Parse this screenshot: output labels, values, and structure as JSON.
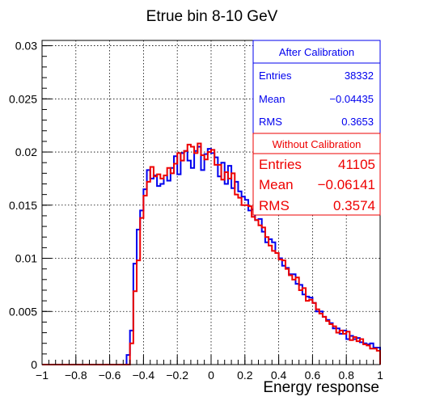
{
  "chart_data": {
    "type": "line",
    "title": "Etrue bin 8-10 GeV",
    "xlabel": "Energy response",
    "ylabel": "",
    "xlim": [
      -1,
      1
    ],
    "ylim": [
      0,
      0.0305
    ],
    "grid": true,
    "x_ticks": [
      -1,
      -0.8,
      -0.6,
      -0.4,
      -0.2,
      0,
      0.2,
      0.4,
      0.6,
      0.8,
      1
    ],
    "x_tick_labels": [
      "−1",
      "−0.8",
      "−0.6",
      "−0.4",
      "−0.2",
      "0",
      "0.2",
      "0.4",
      "0.6",
      "0.8",
      "1"
    ],
    "y_ticks": [
      0,
      0.005,
      0.01,
      0.015,
      0.02,
      0.025,
      0.03
    ],
    "y_tick_labels": [
      "0",
      "0.005",
      "0.01",
      "0.015",
      "0.02",
      "0.025",
      "0.03"
    ],
    "bin_edges_range": [
      -1,
      1
    ],
    "n_bins": 100,
    "series": [
      {
        "name": "After Calibration",
        "color": "#0000ee",
        "start_bin": 25,
        "values": [
          0.0009,
          0.0032,
          0.0095,
          0.0127,
          0.0145,
          0.0165,
          0.0183,
          0.0175,
          0.0178,
          0.0168,
          0.017,
          0.0178,
          0.0173,
          0.0185,
          0.0196,
          0.0179,
          0.0199,
          0.0201,
          0.0192,
          0.0185,
          0.0201,
          0.0205,
          0.0183,
          0.0198,
          0.0203,
          0.0199,
          0.0195,
          0.0177,
          0.019,
          0.017,
          0.0187,
          0.0166,
          0.0172,
          0.0163,
          0.0158,
          0.0155,
          0.0145,
          0.0146,
          0.0136,
          0.0137,
          0.0125,
          0.0115,
          0.0118,
          0.0115,
          0.0105,
          0.01,
          0.0093,
          0.0091,
          0.0085,
          0.0085,
          0.0076,
          0.0075,
          0.0066,
          0.0064,
          0.0063,
          0.0058,
          0.005,
          0.005,
          0.0045,
          0.0042,
          0.0039,
          0.0034,
          0.0034,
          0.0029,
          0.0032,
          0.0024,
          0.0027,
          0.0024,
          0.0025,
          0.0021,
          0.002,
          0.0019,
          0.002,
          0.0016,
          0.0016
        ]
      },
      {
        "name": "Without Calibration",
        "color": "#ee0000",
        "start_bin": 26,
        "values": [
          0.002,
          0.0069,
          0.0098,
          0.0138,
          0.0159,
          0.0172,
          0.0186,
          0.0177,
          0.0179,
          0.0175,
          0.0178,
          0.0185,
          0.018,
          0.0189,
          0.0199,
          0.0192,
          0.0201,
          0.0207,
          0.0205,
          0.0199,
          0.0208,
          0.0197,
          0.0193,
          0.02,
          0.0202,
          0.0188,
          0.0188,
          0.0174,
          0.0181,
          0.0175,
          0.018,
          0.016,
          0.0157,
          0.015,
          0.015,
          0.0149,
          0.0139,
          0.0136,
          0.0131,
          0.0129,
          0.012,
          0.0112,
          0.0107,
          0.0105,
          0.0099,
          0.0098,
          0.009,
          0.0084,
          0.008,
          0.0082,
          0.007,
          0.0072,
          0.006,
          0.0061,
          0.0058,
          0.0052,
          0.0048,
          0.0045,
          0.0041,
          0.0038,
          0.0036,
          0.003,
          0.0032,
          0.0029,
          0.0031,
          0.0023,
          0.0026,
          0.0022,
          0.0024,
          0.0019,
          0.0018,
          0.0015,
          0.0015,
          0.0013,
          0.0012
        ]
      }
    ],
    "legend_placement": "top-right",
    "stats": {
      "after": {
        "header": "After Calibration",
        "entries_label": "Entries",
        "entries": "38332",
        "mean_label": "Mean",
        "mean": "−0.04435",
        "rms_label": "RMS",
        "rms": "0.3653"
      },
      "without": {
        "header": "Without Calibration",
        "entries_label": "Entries",
        "entries": "41105",
        "mean_label": "Mean",
        "mean": "−0.06141",
        "rms_label": "RMS",
        "rms": "0.3574"
      }
    }
  }
}
